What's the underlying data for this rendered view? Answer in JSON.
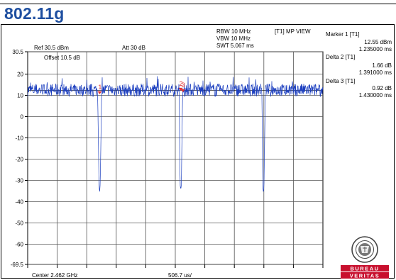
{
  "page": {
    "title": "802.11g"
  },
  "header": {
    "rbw": "RBW 10 MHz",
    "vbw": "VBW 10 MHz",
    "swt": "SWT 5.067 ms",
    "trace_mode": "[T1] MP VIEW",
    "ref": "Ref 30.5 dBm",
    "att": "Att 30 dB",
    "offset": "Offset 10.5 dB",
    "center": "Center 2.462 GHz",
    "span": "506.7 us/"
  },
  "markers": [
    {
      "label": "Marker 1 [T1]",
      "value": "12.55 dBm",
      "time": "1.235000 ms"
    },
    {
      "label": "Delta 2 [T1]",
      "value": "1.66 dB",
      "time": "1.391000 ms"
    },
    {
      "label": "Delta 3 [T1]",
      "value": "0.92 dB",
      "time": "1.430000 ms"
    }
  ],
  "logo": {
    "text_top": "BUREAU",
    "text_bottom": "VERITAS",
    "seal_text": "BUREAU VERITAS 1828"
  },
  "colors": {
    "trace": "#1c3fbf",
    "title": "#1f4fa0",
    "marker": "#e03030",
    "logo_red": "#c8102e"
  },
  "chart_data": {
    "type": "line",
    "title": "",
    "xlabel": "506.7 us/",
    "ylabel": "",
    "x_unit": "ms",
    "xlim": [
      0,
      5.067
    ],
    "ylim": [
      -69.5,
      30.5
    ],
    "yticks": [
      30.5,
      20,
      10,
      0,
      -10,
      -20,
      -30,
      -40,
      -50,
      -60,
      -69.5
    ],
    "ytick_labels": [
      "30.5",
      "20",
      "10",
      "0",
      "-10",
      "-20",
      "-30",
      "-40",
      "-50",
      "-60",
      "-69.5"
    ],
    "grid": true,
    "series": [
      {
        "noise_floor_dbm": 12.5,
        "x": [
          0.0,
          1.2,
          1.225,
          1.235,
          1.245,
          1.27,
          2.6,
          2.615,
          2.626,
          2.637,
          2.66,
          4.02,
          4.035,
          4.045,
          4.055,
          4.08,
          5.067
        ],
        "y": [
          12.5,
          12.5,
          -32,
          -35,
          -32,
          12.5,
          12.5,
          -32,
          -34,
          -32,
          12.5,
          12.5,
          -33,
          -36,
          -33,
          12.5,
          12.5
        ]
      }
    ],
    "marker_points": [
      {
        "label": "1",
        "x": 1.235,
        "y": 12.55
      },
      {
        "label": "2",
        "x": 2.626,
        "y": 14.2
      },
      {
        "label": "3",
        "x": 2.665,
        "y": 13.5
      }
    ]
  }
}
